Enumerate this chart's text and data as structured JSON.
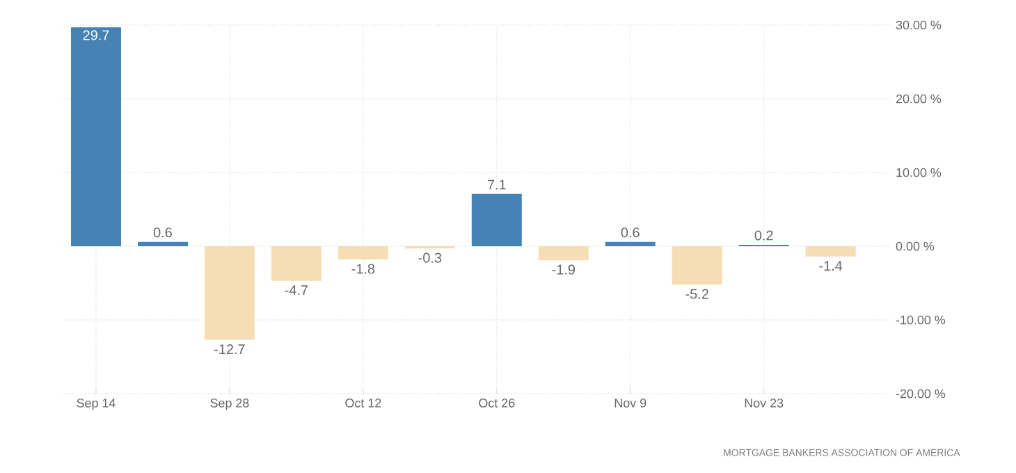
{
  "chart_data": {
    "type": "bar",
    "categories": [
      "Sep 14",
      null,
      "Sep 28",
      null,
      "Oct 12",
      null,
      "Oct 26",
      null,
      "Nov 9",
      null,
      "Nov 23",
      null
    ],
    "values": [
      29.7,
      0.6,
      -12.7,
      -4.7,
      -1.8,
      -0.3,
      7.1,
      -1.9,
      0.6,
      -5.2,
      0.2,
      -1.4
    ],
    "colors": [
      "#4682b4",
      "#4682b4",
      "#f5deb3",
      "#f5deb3",
      "#f5deb3",
      "#f5deb3",
      "#4682b4",
      "#f5deb3",
      "#4682b4",
      "#f5deb3",
      "#4682b4",
      "#f5deb3"
    ],
    "ylim": [
      -20,
      30
    ],
    "yticks": [
      {
        "value": -20,
        "label": "-20.00 %"
      },
      {
        "value": -10,
        "label": "-10.00 %"
      },
      {
        "value": 0,
        "label": "0.00 %"
      },
      {
        "value": 10,
        "label": "10.00 %"
      },
      {
        "value": 20,
        "label": "20.00 %"
      },
      {
        "value": 30,
        "label": "30.00 %"
      }
    ],
    "grid": true,
    "data_labels": true,
    "annotations": [
      "MORTGAGE BANKERS ASSOCIATION OF AMERICA"
    ]
  }
}
